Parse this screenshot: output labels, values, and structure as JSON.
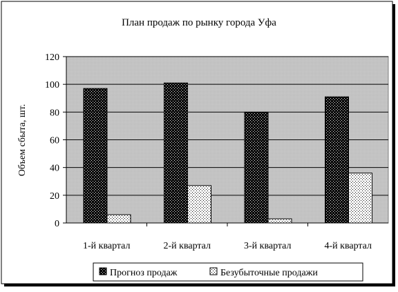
{
  "chart_data": {
    "type": "bar",
    "title": "План продаж по рынку города Уфа",
    "xlabel": "",
    "ylabel": "Объем сбыта, шт.",
    "ylim": [
      0,
      120
    ],
    "yticks": [
      0,
      20,
      40,
      60,
      80,
      100,
      120
    ],
    "grid": true,
    "legend_position": "bottom",
    "categories": [
      "1-й квартал",
      "2-й квартал",
      "3-й квартал",
      "4-й квартал"
    ],
    "series": [
      {
        "name": "Прогноз продаж",
        "values": [
          97,
          101,
          80,
          91
        ],
        "pattern": "dark-dotted"
      },
      {
        "name": "Безубыточные продажи",
        "values": [
          6,
          27,
          3,
          36
        ],
        "pattern": "light-dotted"
      }
    ],
    "colors": {
      "plot_background": "#c0c0c0",
      "dark_fill": "#000000",
      "light_fill": "#ffffff"
    }
  }
}
